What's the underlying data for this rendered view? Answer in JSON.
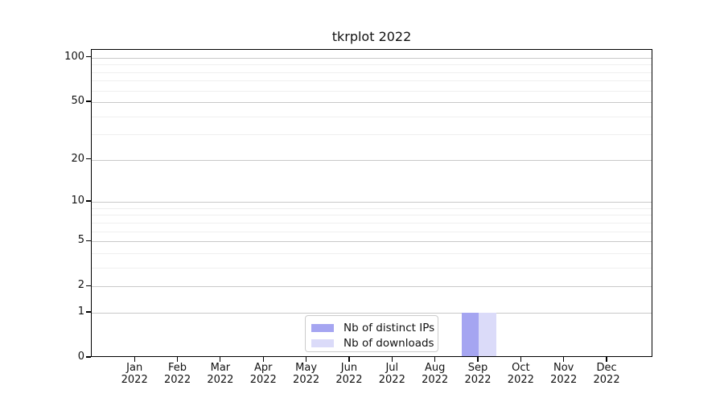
{
  "chart_data": {
    "type": "bar",
    "title": "tkrplot 2022",
    "categories": [
      "Jan",
      "Feb",
      "Mar",
      "Apr",
      "May",
      "Jun",
      "Jul",
      "Aug",
      "Sep",
      "Oct",
      "Nov",
      "Dec"
    ],
    "x_year_label": "2022",
    "series": [
      {
        "name": "Nb of distinct IPs",
        "color": "#a5a5f1",
        "values": [
          0,
          0,
          0,
          0,
          0,
          0,
          0,
          0,
          1,
          0,
          0,
          0
        ]
      },
      {
        "name": "Nb of downloads",
        "color": "#dbdbf9",
        "values": [
          0,
          0,
          0,
          0,
          0,
          0,
          0,
          0,
          1,
          0,
          0,
          0
        ]
      }
    ],
    "y_scale": "log1p",
    "ylim": [
      0,
      113
    ],
    "y_tick_values": [
      0,
      1,
      2,
      5,
      10,
      20,
      50,
      100
    ],
    "y_minor_gridline_values": [
      3,
      4,
      6,
      7,
      8,
      9,
      30,
      40,
      60,
      70,
      80,
      90
    ],
    "grid": "horizontal",
    "legend_position": "bottom-center",
    "colors": {
      "major_grid": "#c9c9c9",
      "minor_grid": "#efefef",
      "axis": "#000000",
      "background": "#ffffff"
    }
  }
}
